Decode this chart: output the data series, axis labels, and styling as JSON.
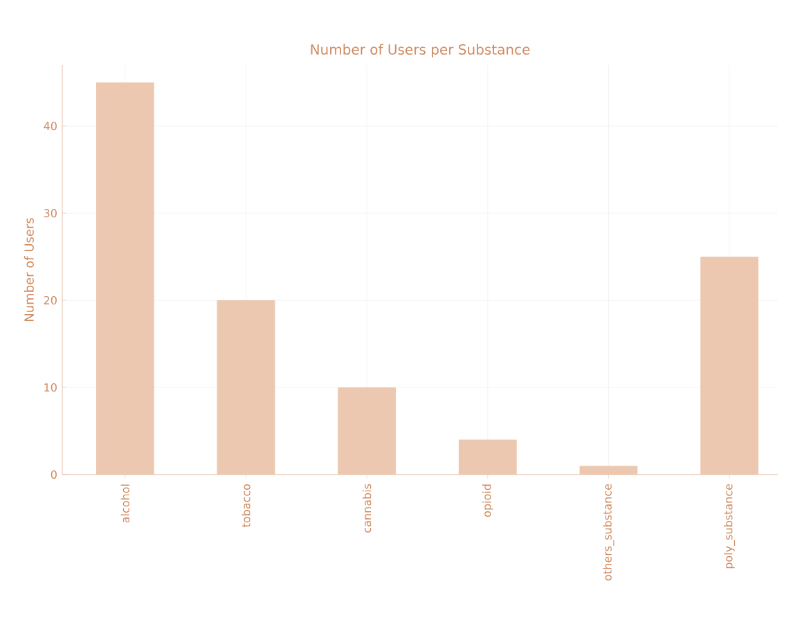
{
  "chart_data": {
    "type": "bar",
    "title": "Number of Users per Substance",
    "ylabel": "Number of Users",
    "categories": [
      "alcohol",
      "tobacco",
      "cannabis",
      "opioid",
      "others_substance",
      "poly_substance"
    ],
    "values": [
      45,
      20,
      10,
      4,
      1,
      25
    ],
    "color": "#ecc8b0",
    "ylim": [
      0,
      47
    ],
    "yticks": [
      0,
      10,
      20,
      30,
      40
    ],
    "grid": true
  }
}
